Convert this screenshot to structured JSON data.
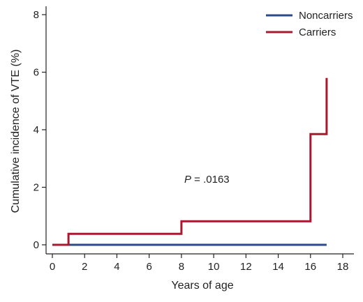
{
  "chart_data": {
    "type": "line",
    "step": true,
    "title": "",
    "xlabel": "Years of age",
    "ylabel": "Cumulative incidence of VTE (%)",
    "xlim": [
      0,
      18
    ],
    "ylim": [
      0,
      8
    ],
    "xticks": [
      0,
      2,
      4,
      6,
      8,
      10,
      12,
      14,
      16,
      18
    ],
    "yticks": [
      0,
      2,
      4,
      6,
      8
    ],
    "grid": false,
    "legend_position": "top-right",
    "annotation": {
      "p_label": "P",
      "p_value": " = .0163"
    },
    "series": [
      {
        "name": "Noncarriers",
        "color": "#2b4a8c",
        "points": [
          [
            1,
            0
          ],
          [
            17,
            0
          ]
        ]
      },
      {
        "name": "Carriers",
        "color": "#a8182e",
        "points": [
          [
            0,
            0
          ],
          [
            1,
            0
          ],
          [
            1,
            0.38
          ],
          [
            8,
            0.38
          ],
          [
            8,
            0.82
          ],
          [
            16,
            0.82
          ],
          [
            16,
            3.85
          ],
          [
            17,
            3.85
          ],
          [
            17,
            5.8
          ]
        ]
      }
    ]
  }
}
